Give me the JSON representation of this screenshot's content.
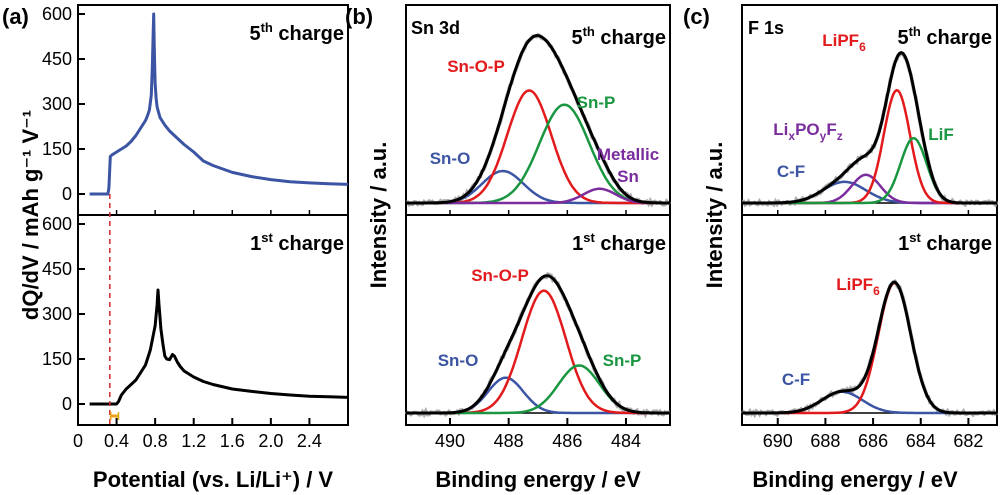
{
  "chart_data": [
    {
      "panel_label": "(a)",
      "type": "line",
      "xlabel": "Potential (vs. Li/Li⁺) / V",
      "xlim": [
        0,
        2.8
      ],
      "xticks": [
        0,
        0.4,
        0.8,
        1.2,
        1.6,
        2.0,
        2.4
      ],
      "xtick_labels": [
        "0",
        "0.4",
        "0.8",
        "1.2",
        "1.6",
        "2.0",
        "2.4"
      ],
      "ylabel": "dQ/dV / mAh g⁻¹ V⁻¹",
      "ylim": [
        -70,
        630
      ],
      "yticks": [
        0,
        150,
        300,
        450,
        600
      ],
      "ytick_labels": [
        "0",
        "150",
        "300",
        "450",
        "600"
      ],
      "reference_potential": 0.33,
      "marker_interval": [
        0.34,
        0.42
      ],
      "colors": {
        "fifth": "#3b54a3",
        "first": "#000000",
        "reference": "#d62728",
        "marker": "#e8a317"
      },
      "subplots": [
        {
          "position": "top",
          "annotation_main": "5",
          "annotation_sup": "th",
          "annotation_rest": " charge",
          "series": [
            {
              "color": "#3b54a3",
              "x": [
                0.12,
                0.31,
                0.32,
                0.335,
                0.35,
                0.4,
                0.45,
                0.5,
                0.55,
                0.6,
                0.65,
                0.7,
                0.72,
                0.74,
                0.76,
                0.77,
                0.78,
                0.785,
                0.79,
                0.8,
                0.81,
                0.82,
                0.85,
                0.9,
                0.95,
                1.0,
                1.1,
                1.2,
                1.3,
                1.4,
                1.6,
                1.8,
                2.0,
                2.2,
                2.4,
                2.6,
                2.8
              ],
              "y": [
                0,
                0,
                20,
                125,
                130,
                140,
                150,
                160,
                175,
                195,
                220,
                245,
                260,
                280,
                330,
                420,
                540,
                600,
                500,
                370,
                320,
                290,
                255,
                230,
                210,
                195,
                165,
                140,
                110,
                95,
                72,
                58,
                48,
                41,
                37,
                34,
                32
              ]
            }
          ]
        },
        {
          "position": "bottom",
          "annotation_main": "1",
          "annotation_sup": "st",
          "annotation_rest": " charge",
          "series": [
            {
              "color": "#000000",
              "x": [
                0.12,
                0.4,
                0.42,
                0.45,
                0.5,
                0.6,
                0.7,
                0.75,
                0.8,
                0.82,
                0.83,
                0.84,
                0.85,
                0.86,
                0.88,
                0.9,
                0.92,
                0.95,
                0.98,
                1.0,
                1.03,
                1.06,
                1.1,
                1.2,
                1.3,
                1.4,
                1.6,
                1.8,
                2.0,
                2.2,
                2.4,
                2.6,
                2.8
              ],
              "y": [
                0,
                0,
                8,
                30,
                50,
                80,
                130,
                180,
                260,
                330,
                380,
                330,
                290,
                250,
                200,
                160,
                150,
                148,
                165,
                160,
                140,
                125,
                110,
                90,
                75,
                65,
                50,
                42,
                35,
                30,
                26,
                24,
                22
              ]
            }
          ]
        }
      ]
    },
    {
      "panel_label": "(b)",
      "type": "line",
      "xlabel": "Binding energy / eV",
      "xlim": [
        491.5,
        482.5
      ],
      "xticks": [
        490,
        488,
        486,
        484
      ],
      "xtick_labels": [
        "490",
        "488",
        "486",
        "484"
      ],
      "ylabel": "Intensity / a.u.",
      "corner_label": "Sn 3d",
      "colors": {
        "envelope": "#000000",
        "raw": "#9a9a9a",
        "Sn-O": "#3b54a3",
        "Sn-O-P": "#e31a1c",
        "Sn-P": "#1a9641",
        "Metallic Sn": "#7b2d9e"
      },
      "subplots": [
        {
          "position": "top",
          "annotation_main": "5",
          "annotation_sup": "th",
          "annotation_rest": " charge",
          "components": [
            {
              "label": "Sn-O",
              "center": 488.2,
              "height": 0.27,
              "width": 0.7,
              "color": "#3b54a3"
            },
            {
              "label": "Sn-O-P",
              "center": 487.3,
              "height": 0.95,
              "width": 0.75,
              "color": "#e31a1c"
            },
            {
              "label": "Sn-P",
              "center": 486.1,
              "height": 0.83,
              "width": 0.85,
              "color": "#1a9641"
            },
            {
              "label": "Metallic Sn",
              "label_line2": "Sn",
              "center": 484.9,
              "height": 0.12,
              "width": 0.55,
              "color": "#7b2d9e"
            }
          ],
          "envelope_peak": 1.28
        },
        {
          "position": "bottom",
          "annotation_main": "1",
          "annotation_sup": "st",
          "annotation_rest": " charge",
          "components": [
            {
              "label": "Sn-O",
              "center": 488.1,
              "height": 0.26,
              "width": 0.6,
              "color": "#3b54a3"
            },
            {
              "label": "Sn-O-P",
              "center": 486.8,
              "height": 0.9,
              "width": 0.75,
              "color": "#e31a1c"
            },
            {
              "label": "Sn-P",
              "center": 485.6,
              "height": 0.35,
              "width": 0.7,
              "color": "#1a9641"
            }
          ],
          "envelope_peak": 1.05
        }
      ]
    },
    {
      "panel_label": "(c)",
      "type": "line",
      "xlabel": "Binding energy / eV",
      "xlim": [
        691.5,
        680.8
      ],
      "xticks": [
        690,
        688,
        686,
        684,
        682
      ],
      "xtick_labels": [
        "690",
        "688",
        "686",
        "684",
        "682"
      ],
      "ylabel": "Intensity / a.u.",
      "corner_label": "F 1s",
      "colors": {
        "envelope": "#000000",
        "raw": "#9a9a9a",
        "C-F": "#3b54a3",
        "LiPF6": "#e31a1c",
        "LiF": "#1a9641",
        "LixPOyFz": "#7b2d9e"
      },
      "subplots": [
        {
          "position": "top",
          "annotation_main": "5",
          "annotation_sup": "th",
          "annotation_rest": " charge",
          "components": [
            {
              "label": "C-F",
              "center": 687.2,
              "height": 0.15,
              "width": 0.9,
              "color": "#3b54a3"
            },
            {
              "label": "LixPOyFz",
              "center": 686.3,
              "height": 0.2,
              "width": 0.6,
              "color": "#7b2d9e"
            },
            {
              "label": "LiPF6",
              "center": 685.0,
              "height": 0.8,
              "width": 0.55,
              "color": "#e31a1c"
            },
            {
              "label": "LiF",
              "center": 684.3,
              "height": 0.46,
              "width": 0.55,
              "color": "#1a9641"
            }
          ],
          "envelope_peak": 1.15
        },
        {
          "position": "bottom",
          "annotation_main": "1",
          "annotation_sup": "st",
          "annotation_rest": " charge",
          "components": [
            {
              "label": "C-F",
              "center": 687.3,
              "height": 0.15,
              "width": 0.85,
              "color": "#3b54a3"
            },
            {
              "label": "LiPF6",
              "center": 685.1,
              "height": 0.92,
              "width": 0.68,
              "color": "#e31a1c"
            }
          ],
          "envelope_peak": 1.0
        }
      ]
    }
  ],
  "text": {
    "panel_a": "(a)",
    "panel_b": "(b)",
    "panel_c": "(c)",
    "ylabel_a": "dQ/dV / mAh g⁻¹ V⁻¹",
    "ylabel_b": "Intensity / a.u.",
    "ylabel_c": "Intensity / a.u.",
    "xlabel_a": "Potential (vs. Li/Li⁺) / V",
    "xlabel_b": "Binding energy / eV",
    "xlabel_c": "Binding energy / eV",
    "corner_b": "Sn 3d",
    "corner_c": "F 1s",
    "labels_b_top": {
      "sno": "Sn-O",
      "snop": "Sn-O-P",
      "snp": "Sn-P",
      "metallic": "Metallic",
      "metallic_sn": "Sn"
    },
    "labels_b_bottom": {
      "sno": "Sn-O",
      "snop": "Sn-O-P",
      "snp": "Sn-P"
    },
    "labels_c_top": {
      "cf": "C-F",
      "lipf6_main": "LiPF",
      "lipf6_sub": "6",
      "lif": "LiF",
      "lipo_li": "Li",
      "lipo_x": "x",
      "lipo_po": "PO",
      "lipo_y": "y",
      "lipo_f": "F",
      "lipo_z": "z"
    },
    "labels_c_bottom": {
      "cf": "C-F",
      "lipf6_main": "LiPF",
      "lipf6_sub": "6"
    }
  }
}
